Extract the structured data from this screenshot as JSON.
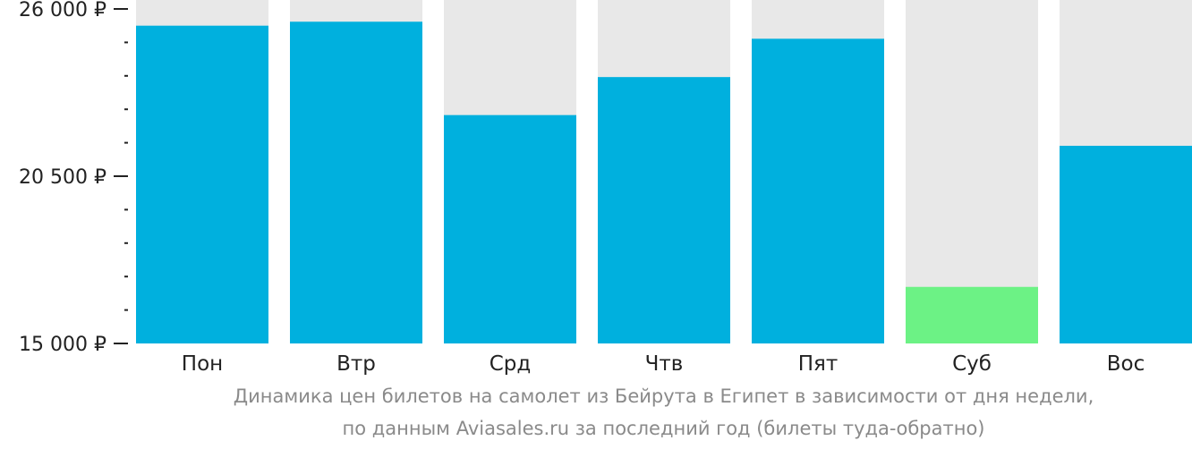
{
  "chart_data": {
    "type": "bar",
    "categories": [
      "Пон",
      "Втр",
      "Срд",
      "Чтв",
      "Пят",
      "Суб",
      "Вос"
    ],
    "values": [
      25450,
      25580,
      22510,
      23760,
      25020,
      16860,
      21500
    ],
    "ylim": [
      15000,
      26000
    ],
    "y_tick_labels": [
      {
        "value": 26000,
        "label": "26 000 ₽"
      },
      {
        "value": 20500,
        "label": "20 500 ₽"
      },
      {
        "value": 15000,
        "label": "15 000 ₽"
      }
    ],
    "highlight_index": 5,
    "colors": {
      "bar": "#00b0de",
      "highlight": "#6cf285",
      "track": "#e8e8e8",
      "axis": "#222222"
    },
    "grid": false
  },
  "caption": {
    "line1": "Динамика цен билетов на самолет из Бейрута в Египет в зависимости от дня недели,",
    "line2": "по данным Aviasales.ru за последний год (билеты туда-обратно)"
  }
}
